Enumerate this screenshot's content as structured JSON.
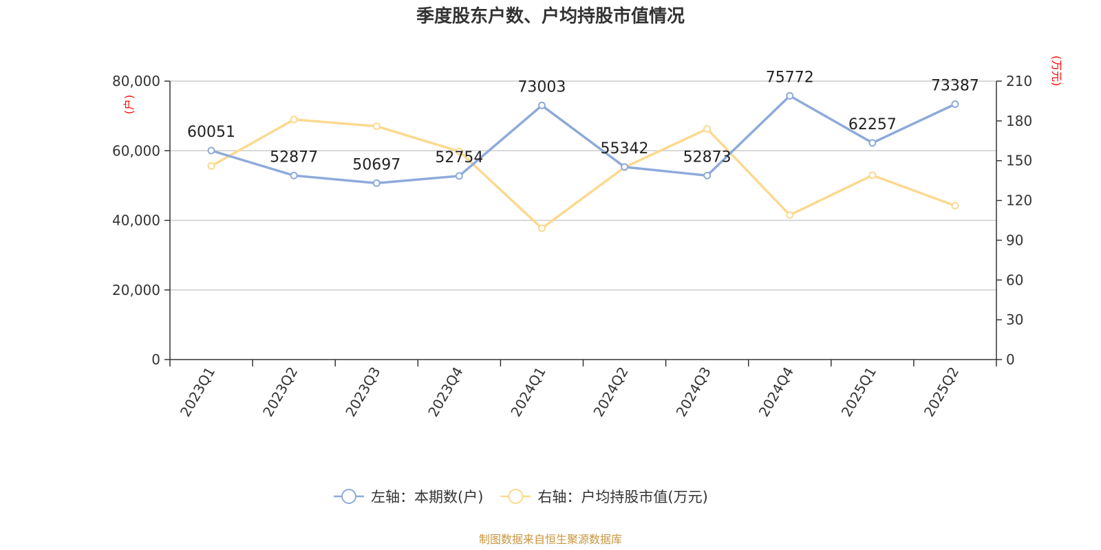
{
  "chart_data": {
    "type": "line",
    "title": "季度股东户数、户均持股市值情况",
    "categories": [
      "2023Q1",
      "2023Q2",
      "2023Q3",
      "2023Q4",
      "2024Q1",
      "2024Q2",
      "2024Q3",
      "2024Q4",
      "2025Q1",
      "2025Q2"
    ],
    "left_axis": {
      "unit_label": "(户)",
      "ylim": [
        0,
        80000
      ],
      "ticks": [
        0,
        20000,
        40000,
        60000,
        80000
      ],
      "tick_labels": [
        "0",
        "20,000",
        "40,000",
        "60,000",
        "80,000"
      ]
    },
    "right_axis": {
      "unit_label": "(万元)",
      "ylim": [
        0,
        210
      ],
      "ticks": [
        0,
        30,
        60,
        90,
        120,
        150,
        180,
        210
      ],
      "tick_labels": [
        "0",
        "30",
        "60",
        "90",
        "120",
        "150",
        "180",
        "210"
      ]
    },
    "series": [
      {
        "name": "左轴：本期数(户)",
        "axis": "left",
        "color": "#8eaadb",
        "values": [
          60051,
          52877,
          50697,
          52754,
          73003,
          55342,
          52873,
          75772,
          62257,
          73387
        ],
        "data_labels": [
          "60051",
          "52877",
          "50697",
          "52754",
          "73003",
          "55342",
          "52873",
          "75772",
          "62257",
          "73387"
        ]
      },
      {
        "name": "右轴：户均持股市值(万元)",
        "axis": "right",
        "color": "#fcd98f",
        "values": [
          146,
          181,
          176,
          157,
          99,
          145,
          174,
          109,
          139,
          116
        ]
      }
    ],
    "grid": true,
    "legend_position": "bottom-center",
    "source": "制图数据来自恒生聚源数据库"
  }
}
